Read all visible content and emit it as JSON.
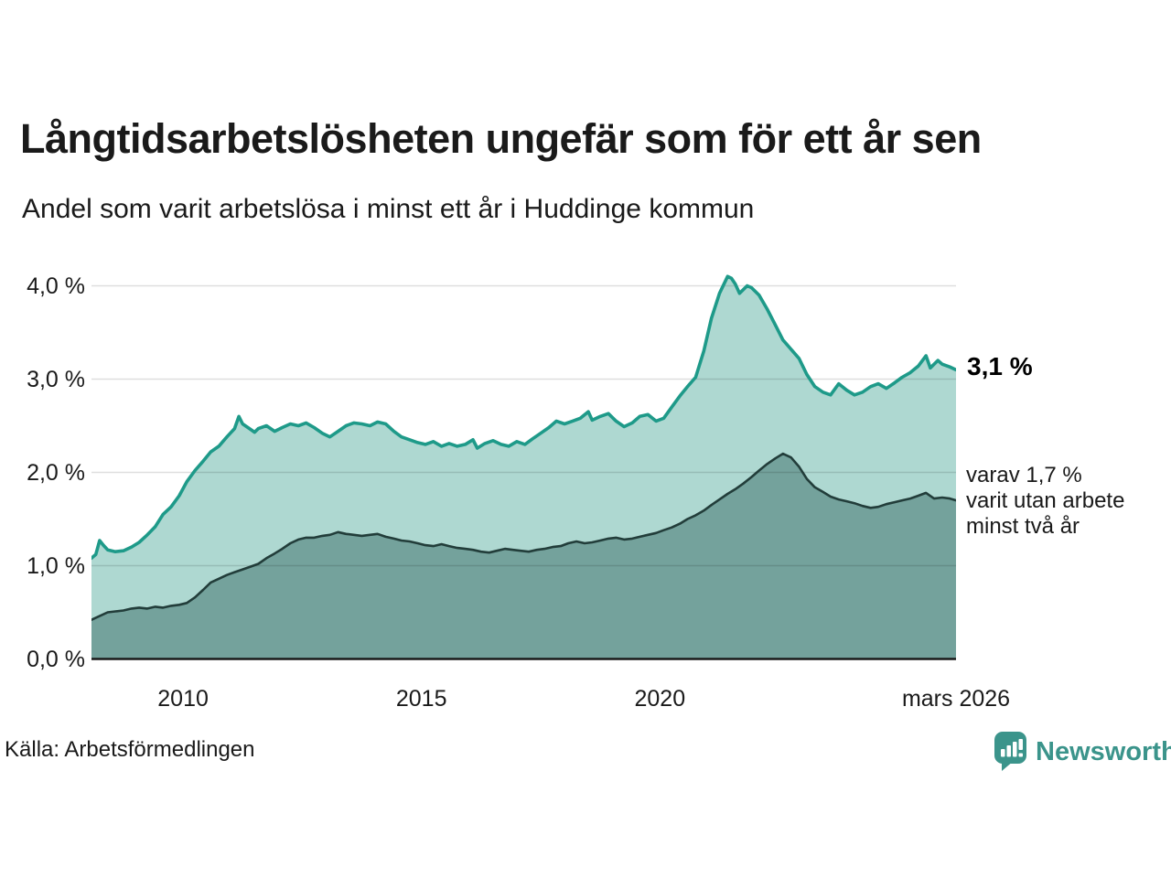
{
  "header": {
    "title": "Långtidsarbetslösheten ungefär som för ett år sen",
    "subtitle": "Andel som varit arbetslösa i minst ett år i Huddinge kommun"
  },
  "footer": {
    "source": "Källa: Arbetsförmedlingen",
    "brand": "Newsworthy"
  },
  "colors": {
    "line_one_year": "#1e9a89",
    "fill_one_year": "#aed8d1",
    "line_two_years": "#223d3a",
    "fill_two_years": "#74a29c",
    "gridline": "rgba(0,0,0,0.13)",
    "axis_line": "#1a1a1a",
    "brand_teal": "#3b948b"
  },
  "chart_data": {
    "type": "area",
    "title": "Långtidsarbetslösheten ungefär som för ett år sen",
    "subtitle": "Andel som varit arbetslösa i minst ett år i Huddinge kommun",
    "xlabel": "",
    "ylabel": "",
    "x_domain": [
      2008.08,
      2026.21
    ],
    "y_domain": [
      0,
      4.3
    ],
    "grid": "horizontal",
    "legend": "none",
    "y_ticks": [
      {
        "value": 4,
        "label": "4,0 %"
      },
      {
        "value": 3,
        "label": "3,0 %"
      },
      {
        "value": 2,
        "label": "2,0 %"
      },
      {
        "value": 1,
        "label": "1,0 %"
      },
      {
        "value": 0,
        "label": "0,0 %"
      }
    ],
    "x_ticks": [
      {
        "value": 2010,
        "label": "2010"
      },
      {
        "value": 2015,
        "label": "2015"
      },
      {
        "value": 2020,
        "label": "2020"
      },
      {
        "value": 2026.21,
        "label": "mars 2026"
      }
    ],
    "annotations": {
      "latest": {
        "text": "3,1 %",
        "value": 3.1,
        "series": "minst ett år"
      },
      "secondary": {
        "lines": [
          "varav 1,7 %",
          "varit utan arbete",
          "minst två år"
        ],
        "value": 1.7
      }
    },
    "series": [
      {
        "name": "Arbetslösa minst ett år",
        "line_color": "#1e9a89",
        "fill_color": "#aed8d1",
        "points": [
          [
            2008.08,
            1.08
          ],
          [
            2008.17,
            1.12
          ],
          [
            2008.25,
            1.27
          ],
          [
            2008.33,
            1.22
          ],
          [
            2008.42,
            1.17
          ],
          [
            2008.58,
            1.15
          ],
          [
            2008.75,
            1.16
          ],
          [
            2008.92,
            1.2
          ],
          [
            2009.08,
            1.25
          ],
          [
            2009.25,
            1.33
          ],
          [
            2009.42,
            1.42
          ],
          [
            2009.58,
            1.55
          ],
          [
            2009.75,
            1.63
          ],
          [
            2009.92,
            1.75
          ],
          [
            2010.08,
            1.9
          ],
          [
            2010.25,
            2.02
          ],
          [
            2010.42,
            2.12
          ],
          [
            2010.58,
            2.22
          ],
          [
            2010.75,
            2.28
          ],
          [
            2010.92,
            2.38
          ],
          [
            2011.08,
            2.47
          ],
          [
            2011.17,
            2.6
          ],
          [
            2011.25,
            2.52
          ],
          [
            2011.42,
            2.46
          ],
          [
            2011.5,
            2.43
          ],
          [
            2011.58,
            2.47
          ],
          [
            2011.75,
            2.5
          ],
          [
            2011.92,
            2.44
          ],
          [
            2012.08,
            2.48
          ],
          [
            2012.25,
            2.52
          ],
          [
            2012.42,
            2.5
          ],
          [
            2012.58,
            2.53
          ],
          [
            2012.75,
            2.48
          ],
          [
            2012.92,
            2.42
          ],
          [
            2013.08,
            2.38
          ],
          [
            2013.25,
            2.44
          ],
          [
            2013.42,
            2.5
          ],
          [
            2013.58,
            2.53
          ],
          [
            2013.75,
            2.52
          ],
          [
            2013.92,
            2.5
          ],
          [
            2014.08,
            2.54
          ],
          [
            2014.25,
            2.52
          ],
          [
            2014.42,
            2.44
          ],
          [
            2014.58,
            2.38
          ],
          [
            2014.75,
            2.35
          ],
          [
            2014.92,
            2.32
          ],
          [
            2015.08,
            2.3
          ],
          [
            2015.25,
            2.33
          ],
          [
            2015.42,
            2.28
          ],
          [
            2015.58,
            2.31
          ],
          [
            2015.75,
            2.28
          ],
          [
            2015.92,
            2.3
          ],
          [
            2016.08,
            2.35
          ],
          [
            2016.17,
            2.26
          ],
          [
            2016.33,
            2.31
          ],
          [
            2016.5,
            2.34
          ],
          [
            2016.67,
            2.3
          ],
          [
            2016.83,
            2.28
          ],
          [
            2017.0,
            2.33
          ],
          [
            2017.17,
            2.3
          ],
          [
            2017.33,
            2.36
          ],
          [
            2017.5,
            2.42
          ],
          [
            2017.67,
            2.48
          ],
          [
            2017.83,
            2.55
          ],
          [
            2018.0,
            2.52
          ],
          [
            2018.17,
            2.55
          ],
          [
            2018.33,
            2.58
          ],
          [
            2018.5,
            2.65
          ],
          [
            2018.58,
            2.56
          ],
          [
            2018.75,
            2.6
          ],
          [
            2018.92,
            2.63
          ],
          [
            2019.08,
            2.55
          ],
          [
            2019.25,
            2.49
          ],
          [
            2019.42,
            2.53
          ],
          [
            2019.58,
            2.6
          ],
          [
            2019.75,
            2.62
          ],
          [
            2019.92,
            2.55
          ],
          [
            2020.08,
            2.58
          ],
          [
            2020.25,
            2.7
          ],
          [
            2020.42,
            2.82
          ],
          [
            2020.58,
            2.92
          ],
          [
            2020.75,
            3.02
          ],
          [
            2020.92,
            3.3
          ],
          [
            2021.08,
            3.65
          ],
          [
            2021.25,
            3.92
          ],
          [
            2021.42,
            4.1
          ],
          [
            2021.5,
            4.08
          ],
          [
            2021.58,
            4.02
          ],
          [
            2021.67,
            3.92
          ],
          [
            2021.83,
            4.0
          ],
          [
            2021.92,
            3.98
          ],
          [
            2022.08,
            3.9
          ],
          [
            2022.25,
            3.75
          ],
          [
            2022.42,
            3.58
          ],
          [
            2022.58,
            3.42
          ],
          [
            2022.75,
            3.32
          ],
          [
            2022.92,
            3.22
          ],
          [
            2023.08,
            3.05
          ],
          [
            2023.25,
            2.92
          ],
          [
            2023.42,
            2.86
          ],
          [
            2023.58,
            2.83
          ],
          [
            2023.75,
            2.95
          ],
          [
            2023.92,
            2.88
          ],
          [
            2024.08,
            2.83
          ],
          [
            2024.25,
            2.86
          ],
          [
            2024.42,
            2.92
          ],
          [
            2024.58,
            2.95
          ],
          [
            2024.75,
            2.9
          ],
          [
            2024.92,
            2.96
          ],
          [
            2025.08,
            3.02
          ],
          [
            2025.25,
            3.07
          ],
          [
            2025.42,
            3.14
          ],
          [
            2025.58,
            3.25
          ],
          [
            2025.67,
            3.12
          ],
          [
            2025.83,
            3.2
          ],
          [
            2025.92,
            3.16
          ],
          [
            2026.08,
            3.13
          ],
          [
            2026.21,
            3.1
          ]
        ]
      },
      {
        "name": "Arbetslösa minst två år",
        "line_color": "#223d3a",
        "fill_color": "#74a29c",
        "points": [
          [
            2008.08,
            0.42
          ],
          [
            2008.25,
            0.46
          ],
          [
            2008.42,
            0.5
          ],
          [
            2008.58,
            0.51
          ],
          [
            2008.75,
            0.52
          ],
          [
            2008.92,
            0.54
          ],
          [
            2009.08,
            0.55
          ],
          [
            2009.25,
            0.54
          ],
          [
            2009.42,
            0.56
          ],
          [
            2009.58,
            0.55
          ],
          [
            2009.75,
            0.57
          ],
          [
            2009.92,
            0.58
          ],
          [
            2010.08,
            0.6
          ],
          [
            2010.25,
            0.66
          ],
          [
            2010.42,
            0.74
          ],
          [
            2010.58,
            0.82
          ],
          [
            2010.75,
            0.86
          ],
          [
            2010.92,
            0.9
          ],
          [
            2011.08,
            0.93
          ],
          [
            2011.25,
            0.96
          ],
          [
            2011.42,
            0.99
          ],
          [
            2011.58,
            1.02
          ],
          [
            2011.75,
            1.08
          ],
          [
            2011.92,
            1.13
          ],
          [
            2012.08,
            1.18
          ],
          [
            2012.25,
            1.24
          ],
          [
            2012.42,
            1.28
          ],
          [
            2012.58,
            1.3
          ],
          [
            2012.75,
            1.3
          ],
          [
            2012.92,
            1.32
          ],
          [
            2013.08,
            1.33
          ],
          [
            2013.25,
            1.36
          ],
          [
            2013.42,
            1.34
          ],
          [
            2013.58,
            1.33
          ],
          [
            2013.75,
            1.32
          ],
          [
            2013.92,
            1.33
          ],
          [
            2014.08,
            1.34
          ],
          [
            2014.25,
            1.31
          ],
          [
            2014.42,
            1.29
          ],
          [
            2014.58,
            1.27
          ],
          [
            2014.75,
            1.26
          ],
          [
            2014.92,
            1.24
          ],
          [
            2015.08,
            1.22
          ],
          [
            2015.25,
            1.21
          ],
          [
            2015.42,
            1.23
          ],
          [
            2015.58,
            1.21
          ],
          [
            2015.75,
            1.19
          ],
          [
            2015.92,
            1.18
          ],
          [
            2016.08,
            1.17
          ],
          [
            2016.25,
            1.15
          ],
          [
            2016.42,
            1.14
          ],
          [
            2016.58,
            1.16
          ],
          [
            2016.75,
            1.18
          ],
          [
            2016.92,
            1.17
          ],
          [
            2017.08,
            1.16
          ],
          [
            2017.25,
            1.15
          ],
          [
            2017.42,
            1.17
          ],
          [
            2017.58,
            1.18
          ],
          [
            2017.75,
            1.2
          ],
          [
            2017.92,
            1.21
          ],
          [
            2018.08,
            1.24
          ],
          [
            2018.25,
            1.26
          ],
          [
            2018.42,
            1.24
          ],
          [
            2018.58,
            1.25
          ],
          [
            2018.75,
            1.27
          ],
          [
            2018.92,
            1.29
          ],
          [
            2019.08,
            1.3
          ],
          [
            2019.25,
            1.28
          ],
          [
            2019.42,
            1.29
          ],
          [
            2019.58,
            1.31
          ],
          [
            2019.75,
            1.33
          ],
          [
            2019.92,
            1.35
          ],
          [
            2020.08,
            1.38
          ],
          [
            2020.25,
            1.41
          ],
          [
            2020.42,
            1.45
          ],
          [
            2020.58,
            1.5
          ],
          [
            2020.75,
            1.54
          ],
          [
            2020.92,
            1.59
          ],
          [
            2021.08,
            1.65
          ],
          [
            2021.25,
            1.71
          ],
          [
            2021.42,
            1.77
          ],
          [
            2021.58,
            1.82
          ],
          [
            2021.75,
            1.88
          ],
          [
            2021.92,
            1.95
          ],
          [
            2022.08,
            2.02
          ],
          [
            2022.25,
            2.09
          ],
          [
            2022.42,
            2.15
          ],
          [
            2022.58,
            2.2
          ],
          [
            2022.75,
            2.16
          ],
          [
            2022.92,
            2.06
          ],
          [
            2023.08,
            1.93
          ],
          [
            2023.25,
            1.84
          ],
          [
            2023.42,
            1.79
          ],
          [
            2023.58,
            1.74
          ],
          [
            2023.75,
            1.71
          ],
          [
            2023.92,
            1.69
          ],
          [
            2024.08,
            1.67
          ],
          [
            2024.25,
            1.64
          ],
          [
            2024.42,
            1.62
          ],
          [
            2024.58,
            1.63
          ],
          [
            2024.75,
            1.66
          ],
          [
            2024.92,
            1.68
          ],
          [
            2025.08,
            1.7
          ],
          [
            2025.25,
            1.72
          ],
          [
            2025.42,
            1.75
          ],
          [
            2025.58,
            1.78
          ],
          [
            2025.75,
            1.72
          ],
          [
            2025.92,
            1.73
          ],
          [
            2026.08,
            1.72
          ],
          [
            2026.21,
            1.7
          ]
        ]
      }
    ]
  }
}
